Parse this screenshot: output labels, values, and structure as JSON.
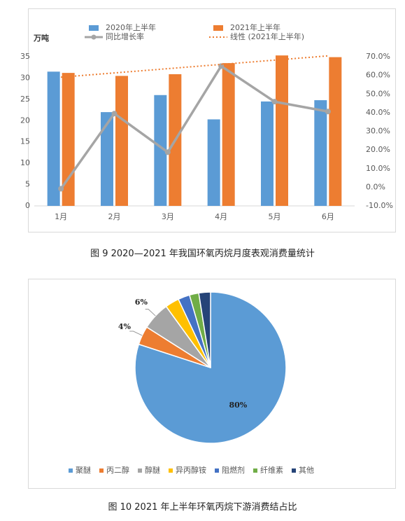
{
  "chart_data": [
    {
      "type": "bar",
      "title": "图 9  2020—2021 年我国环氧丙烷月度表观消费量统计",
      "y_label": "万吨",
      "categories": [
        "1月",
        "2月",
        "3月",
        "4月",
        "5月",
        "6月"
      ],
      "series": [
        {
          "name": "2020年上半年",
          "type": "bar",
          "color": "#5b9bd5",
          "values": [
            31.5,
            22.0,
            26.0,
            20.3,
            24.5,
            24.8
          ]
        },
        {
          "name": "2021年上半年",
          "type": "bar",
          "color": "#ed7d31",
          "values": [
            31.2,
            30.5,
            30.9,
            33.5,
            35.3,
            34.9
          ]
        },
        {
          "name": "同比增长率",
          "type": "line",
          "marker": true,
          "axis": "y2",
          "color": "#a5a5a5",
          "values": [
            -0.8,
            39.5,
            18.8,
            65.0,
            45.9,
            40.6
          ]
        },
        {
          "name": "线性 (2021年上半年)",
          "type": "line",
          "dash": true,
          "color": "#ed7d31",
          "values": [
            30.2,
            31.2,
            32.2,
            33.2,
            34.2,
            35.2
          ]
        }
      ],
      "ylim": [
        0,
        35
      ],
      "yticks": [
        0,
        5,
        10,
        15,
        20,
        25,
        30,
        35
      ],
      "y2lim": [
        -10,
        70
      ],
      "y2ticks": [
        {
          "value": -10,
          "label": "-10.0%"
        },
        {
          "value": 0,
          "label": "0.0%"
        },
        {
          "value": 10,
          "label": "10.0%"
        },
        {
          "value": 20,
          "label": "20.0%"
        },
        {
          "value": 30,
          "label": "30.0%"
        },
        {
          "value": 40,
          "label": "40.0%"
        },
        {
          "value": 50,
          "label": "50.0%"
        },
        {
          "value": 60,
          "label": "60.0%"
        },
        {
          "value": 70,
          "label": "70.0%"
        }
      ],
      "legend": "top"
    },
    {
      "type": "pie",
      "title": "图 10  2021 年上半年环氧丙烷下游消费结占比",
      "categories": [
        "聚醚",
        "丙二醇",
        "醇醚",
        "异丙醇铵",
        "阻燃剂",
        "纤维素",
        "其他"
      ],
      "values": [
        80,
        4,
        6,
        3,
        2.5,
        2,
        2.5
      ],
      "value_labels": [
        "80%",
        "4%",
        "6%",
        null,
        null,
        null,
        null
      ],
      "colors": [
        "#5b9bd5",
        "#ed7d31",
        "#a5a5a5",
        "#ffc000",
        "#4472c4",
        "#70ad47",
        "#264478"
      ],
      "legend": "bottom"
    }
  ]
}
